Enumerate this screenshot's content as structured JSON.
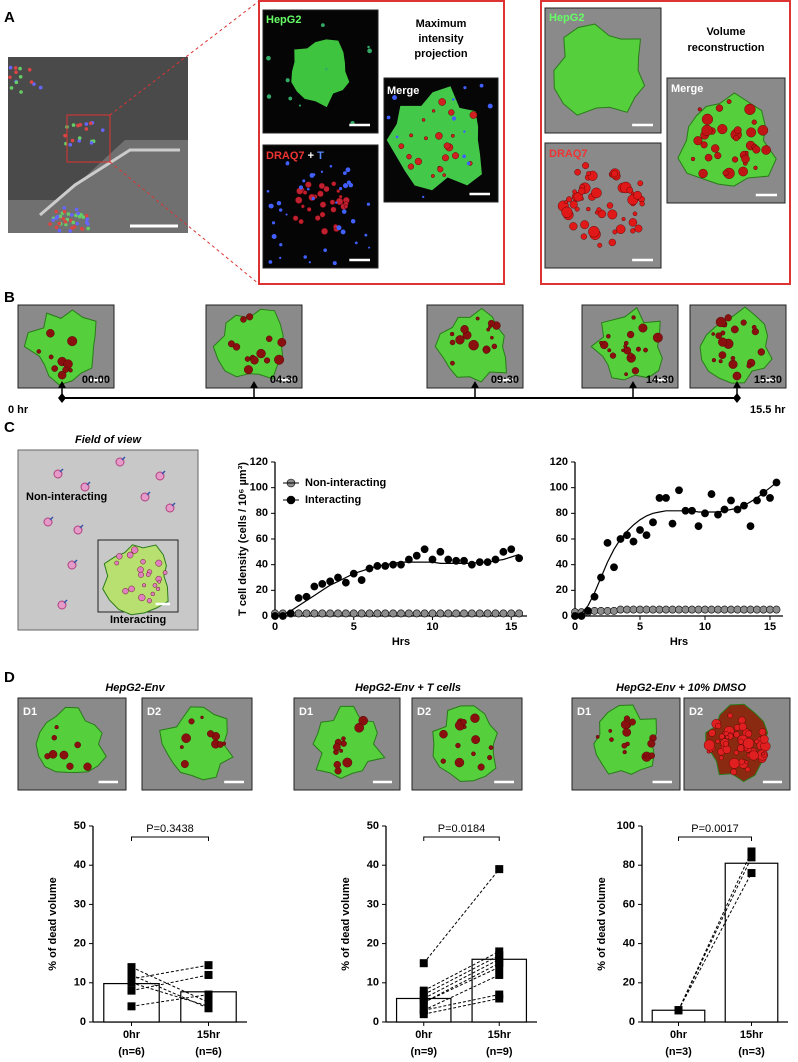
{
  "panel_labels": [
    "A",
    "B",
    "C",
    "D"
  ],
  "panel_a": {
    "mip": {
      "title_lines": [
        "Maximum",
        "intensity",
        "projection"
      ],
      "hepg2": "HepG2",
      "draq7": "DRAQ7",
      "plus": "+",
      "t": "T",
      "merge": "Merge"
    },
    "volume": {
      "title_lines": [
        "Volume",
        "reconstruction"
      ],
      "hepg2": "HepG2",
      "draq7": "DRAQ7",
      "merge": "Merge"
    }
  },
  "panel_b": {
    "times": [
      "00:00",
      "04:30",
      "09:30",
      "14:30",
      "15:30"
    ],
    "start": "0 hr",
    "end": "15.5 hr"
  },
  "panel_c": {
    "title": "Field of view",
    "non_interacting": "Non-interacting",
    "interacting": "Interacting"
  },
  "panel_d": {
    "conditions": [
      {
        "title": "HepG2-Env",
        "images": [
          "D1",
          "D2"
        ]
      },
      {
        "title": "HepG2-Env + T cells",
        "images": [
          "D1",
          "D2"
        ]
      },
      {
        "title": "HepG2-Env + 10% DMSO",
        "images": [
          "D1",
          "D2"
        ]
      }
    ]
  },
  "chart_data": [
    {
      "type": "scatter",
      "x_label": "Hrs",
      "y_label": "T cell density (cells / 10⁶ µm³)",
      "x": [
        0,
        0.5,
        1,
        1.5,
        2,
        2.5,
        3,
        3.5,
        4,
        4.5,
        5,
        5.5,
        6,
        6.5,
        7,
        7.5,
        8,
        8.5,
        9,
        9.5,
        10,
        10.5,
        11,
        11.5,
        12,
        12.5,
        13,
        13.5,
        14,
        14.5,
        15,
        15.5
      ],
      "series": [
        {
          "name": "Non-interacting",
          "color": "#8c8c8c",
          "values": [
            2,
            2,
            2,
            2,
            2,
            2,
            2,
            2,
            2,
            2,
            2,
            2,
            2,
            2,
            2,
            2,
            2,
            2,
            2,
            2,
            2,
            2,
            2,
            2,
            2,
            2,
            2,
            2,
            2,
            2,
            2,
            2
          ]
        },
        {
          "name": "Interacting",
          "color": "#000000",
          "values": [
            0,
            0,
            2,
            14,
            15,
            23,
            25,
            27,
            30,
            26,
            33,
            28,
            37,
            39,
            39,
            40,
            40,
            44,
            47,
            52,
            44,
            50,
            44,
            43,
            43,
            40,
            42,
            42,
            44,
            50,
            52,
            45
          ],
          "fit": [
            0,
            1,
            4,
            8,
            12,
            16,
            20,
            24,
            27,
            30,
            33,
            35,
            37,
            39,
            40,
            41,
            42,
            42,
            42,
            42,
            42,
            41,
            41,
            41,
            41,
            41,
            42,
            42,
            43,
            44,
            46,
            48
          ]
        }
      ],
      "xlim": [
        0,
        16
      ],
      "xticks": [
        0,
        5,
        10,
        15
      ],
      "ylim": [
        0,
        120
      ],
      "yticks": [
        0,
        20,
        40,
        60,
        80,
        100,
        120
      ]
    },
    {
      "type": "scatter",
      "x_label": "Hrs",
      "x": [
        0,
        0.5,
        1,
        1.5,
        2,
        2.5,
        3,
        3.5,
        4,
        4.5,
        5,
        5.5,
        6,
        6.5,
        7,
        7.5,
        8,
        8.5,
        9,
        9.5,
        10,
        10.5,
        11,
        11.5,
        12,
        12.5,
        13,
        13.5,
        14,
        14.5,
        15,
        15.5
      ],
      "series": [
        {
          "color": "#8c8c8c",
          "values": [
            3,
            3,
            3,
            4,
            4,
            4,
            4,
            5,
            5,
            5,
            5,
            5,
            5,
            5,
            5,
            5,
            5,
            5,
            5,
            5,
            5,
            5,
            5,
            5,
            5,
            5,
            5,
            5,
            5,
            5,
            5,
            5
          ]
        },
        {
          "color": "#000000",
          "values": [
            0,
            0,
            4,
            15,
            30,
            57,
            38,
            60,
            63,
            58,
            67,
            63,
            73,
            92,
            92,
            72,
            98,
            82,
            82,
            70,
            80,
            95,
            79,
            83,
            90,
            83,
            86,
            70,
            90,
            96,
            92,
            104
          ],
          "fit": [
            0,
            2,
            8,
            18,
            30,
            42,
            52,
            60,
            66,
            71,
            75,
            78,
            80,
            81,
            82,
            82,
            82,
            82,
            82,
            81,
            81,
            81,
            81,
            82,
            83,
            84,
            86,
            89,
            92,
            96,
            100,
            104
          ]
        }
      ],
      "xlim": [
        0,
        16
      ],
      "xticks": [
        0,
        5,
        10,
        15
      ],
      "ylim": [
        0,
        120
      ],
      "yticks": [
        0,
        20,
        40,
        60,
        80,
        100,
        120
      ]
    },
    {
      "type": "paired_bar",
      "y_label": "% of dead volume",
      "categories": [
        "0hr",
        "15hr"
      ],
      "category_notes": [
        "(n=6)",
        "(n=6)"
      ],
      "values": [
        9.8,
        7.7
      ],
      "pairs": [
        [
          14,
          5
        ],
        [
          12,
          3.5
        ],
        [
          11,
          14.5
        ],
        [
          10,
          4
        ],
        [
          8,
          12
        ],
        [
          4,
          7
        ]
      ],
      "p_label": "P=0.3438",
      "ylim": [
        0,
        50
      ],
      "yticks": [
        0,
        10,
        20,
        30,
        40,
        50
      ]
    },
    {
      "type": "paired_bar",
      "y_label": "% of dead volume",
      "categories": [
        "0hr",
        "15hr"
      ],
      "category_notes": [
        "(n=9)",
        "(n=9)"
      ],
      "values": [
        6,
        16
      ],
      "pairs": [
        [
          15,
          39
        ],
        [
          8,
          18
        ],
        [
          7,
          17
        ],
        [
          6,
          16
        ],
        [
          5,
          15
        ],
        [
          5,
          14
        ],
        [
          3,
          12
        ],
        [
          3,
          7
        ],
        [
          2,
          6
        ]
      ],
      "p_label": "P=0.0184",
      "ylim": [
        0,
        50
      ],
      "yticks": [
        0,
        10,
        20,
        30,
        40,
        50
      ]
    },
    {
      "type": "paired_bar",
      "y_label": "% of dead volume",
      "categories": [
        "0hr",
        "15hr"
      ],
      "category_notes": [
        "(n=3)",
        "(n=3)"
      ],
      "values": [
        6,
        81
      ],
      "pairs": [
        [
          6,
          87
        ],
        [
          6,
          84
        ],
        [
          6,
          76
        ]
      ],
      "p_label": "P=0.0017",
      "ylim": [
        0,
        100
      ],
      "yticks": [
        0,
        20,
        40,
        60,
        80,
        100
      ]
    }
  ]
}
